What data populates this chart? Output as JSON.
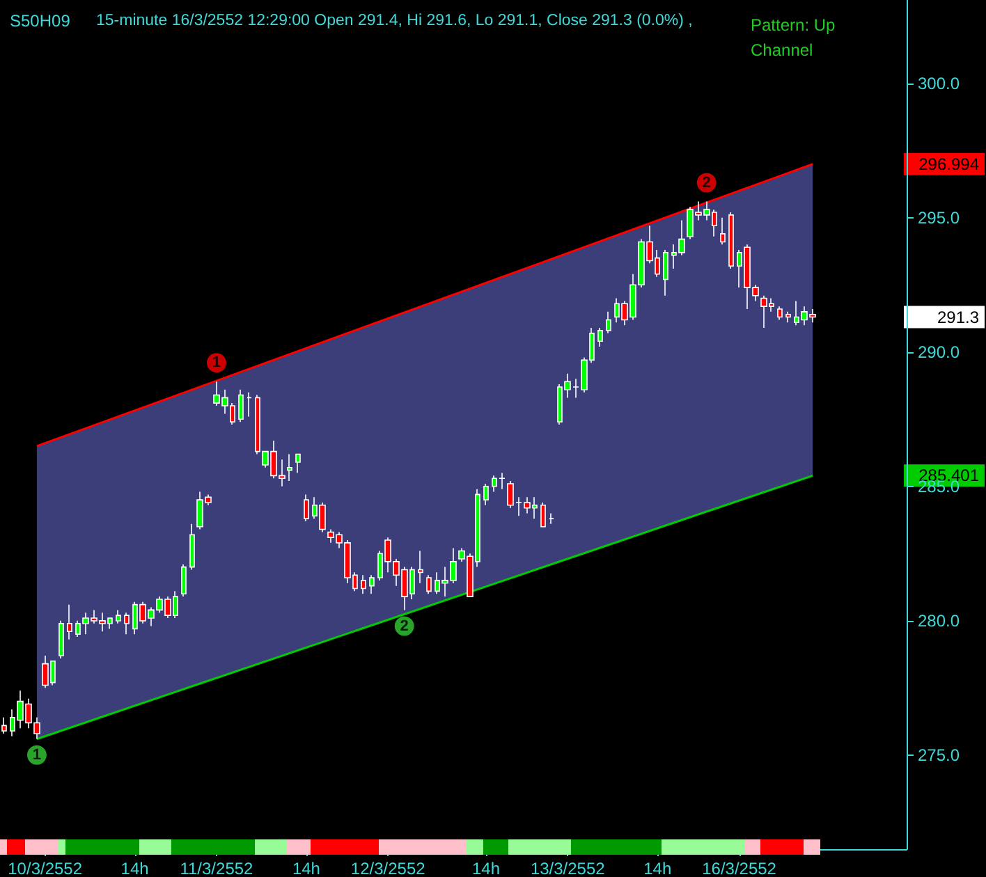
{
  "chart_data": {
    "type": "candlestick",
    "title": "S50H09",
    "subtitle": "15-minute 16/3/2552 12:29:00 Open 291.4, Hi 291.6, Lo 291.1, Close 291.3 (0.0%) ,",
    "annotations": [
      "Pattern: Up Channel",
      "291.3",
      "296.994",
      "285.401"
    ],
    "categories": [
      null,
      null,
      null,
      null,
      null,
      "10/3/2552",
      null,
      null,
      null,
      null,
      null,
      null,
      null,
      null,
      null,
      null,
      "14h",
      null,
      null,
      null,
      null,
      null,
      null,
      null,
      null,
      null,
      "11/3/2552",
      null,
      null,
      null,
      null,
      null,
      null,
      null,
      null,
      null,
      null,
      "14h",
      null,
      null,
      null,
      null,
      null,
      null,
      null,
      null,
      null,
      "12/3/2552",
      null,
      null,
      null,
      null,
      null,
      null,
      null,
      null,
      null,
      null,
      null,
      "14h",
      null,
      null,
      null,
      null,
      null,
      null,
      null,
      null,
      null,
      "13/3/2552",
      null,
      null,
      null,
      null,
      null,
      null,
      null,
      null,
      null,
      null,
      "14h",
      null,
      null,
      null,
      null,
      null,
      null,
      null,
      null,
      null,
      "16/3/2552",
      null,
      null,
      null,
      null,
      null,
      null,
      null,
      null,
      null,
      null,
      null,
      null,
      null,
      null,
      null,
      null,
      null,
      null,
      null,
      null
    ],
    "ylim": [
      271.5,
      303.1
    ],
    "yticks": [
      {
        "value": 275,
        "label": "275.0"
      },
      {
        "value": 280,
        "label": "280.0"
      },
      {
        "value": 285,
        "label": "285.0"
      },
      {
        "value": 290,
        "label": "290.0"
      },
      {
        "value": 295,
        "label": "295.0"
      },
      {
        "value": 300,
        "label": "300.0"
      }
    ],
    "series": [
      {
        "ohlc": [
          [
            276.1,
            276.4,
            275.8,
            275.9
          ],
          [
            275.9,
            276.7,
            275.7,
            276.4
          ],
          [
            276.3,
            277.4,
            276.0,
            277.0
          ],
          [
            276.9,
            277.1,
            276.0,
            276.2
          ],
          [
            276.2,
            276.4,
            275.6,
            275.8
          ],
          [
            278.4,
            278.7,
            277.5,
            277.6
          ],
          [
            277.7,
            278.5,
            277.6,
            278.5
          ],
          [
            278.7,
            280.0,
            278.6,
            279.9
          ],
          [
            279.9,
            280.6,
            279.3,
            279.6
          ],
          [
            279.5,
            280.0,
            279.4,
            279.9
          ],
          [
            279.9,
            280.3,
            279.5,
            280.1
          ],
          [
            280.1,
            280.4,
            279.9,
            280.0
          ],
          [
            280.0,
            280.3,
            279.6,
            279.9
          ],
          [
            279.9,
            280.1,
            279.7,
            280.1
          ],
          [
            280.0,
            280.4,
            279.9,
            280.2
          ],
          [
            280.2,
            280.3,
            279.5,
            279.9
          ],
          [
            279.7,
            280.7,
            279.5,
            280.6
          ],
          [
            280.6,
            280.7,
            279.9,
            280.0
          ],
          [
            280.1,
            280.5,
            279.8,
            280.4
          ],
          [
            280.4,
            280.9,
            280.3,
            280.8
          ],
          [
            280.8,
            280.9,
            280.1,
            280.2
          ],
          [
            280.2,
            281.1,
            280.1,
            280.9
          ],
          [
            281.0,
            282.1,
            280.9,
            282.0
          ],
          [
            282.0,
            283.6,
            281.9,
            283.2
          ],
          [
            283.5,
            284.8,
            283.4,
            284.5
          ],
          [
            284.6,
            284.7,
            284.3,
            284.4
          ],
          [
            288.1,
            288.9,
            288.0,
            288.4
          ],
          [
            288.0,
            288.6,
            287.7,
            288.3
          ],
          [
            288.0,
            288.1,
            287.3,
            287.4
          ],
          [
            287.5,
            288.6,
            287.4,
            288.4
          ],
          [
            288.3,
            288.5,
            287.6,
            288.3
          ],
          [
            288.3,
            288.4,
            286.2,
            286.3
          ],
          [
            285.8,
            286.3,
            285.7,
            286.3
          ],
          [
            286.3,
            286.7,
            285.3,
            285.4
          ],
          [
            285.4,
            286.0,
            285.0,
            285.3
          ],
          [
            285.6,
            286.2,
            285.2,
            285.7
          ],
          [
            285.9,
            286.2,
            285.5,
            286.2
          ],
          [
            284.5,
            284.7,
            283.7,
            283.8
          ],
          [
            283.9,
            284.6,
            283.8,
            284.3
          ],
          [
            284.3,
            284.4,
            283.3,
            283.4
          ],
          [
            283.3,
            283.4,
            282.9,
            283.1
          ],
          [
            283.2,
            283.3,
            282.7,
            282.9
          ],
          [
            282.9,
            283.0,
            281.4,
            281.6
          ],
          [
            281.7,
            281.8,
            281.1,
            281.2
          ],
          [
            281.5,
            281.7,
            281.0,
            281.2
          ],
          [
            281.3,
            281.7,
            281.0,
            281.6
          ],
          [
            281.6,
            282.6,
            281.5,
            282.5
          ],
          [
            283.0,
            283.1,
            281.8,
            282.2
          ],
          [
            282.2,
            282.3,
            281.3,
            281.7
          ],
          [
            281.9,
            282.0,
            280.4,
            280.9
          ],
          [
            281.0,
            282.0,
            280.8,
            281.9
          ],
          [
            281.9,
            282.6,
            281.4,
            281.8
          ],
          [
            281.6,
            281.7,
            281.0,
            281.1
          ],
          [
            281.1,
            281.8,
            281.0,
            281.5
          ],
          [
            281.4,
            282.0,
            280.9,
            281.5
          ],
          [
            281.5,
            282.7,
            281.4,
            282.2
          ],
          [
            282.3,
            282.7,
            282.2,
            282.6
          ],
          [
            282.4,
            282.5,
            280.9,
            280.9
          ],
          [
            282.2,
            284.9,
            282.0,
            284.7
          ],
          [
            284.5,
            285.1,
            284.3,
            285.0
          ],
          [
            285.0,
            285.4,
            284.8,
            285.3
          ],
          [
            285.3,
            285.5,
            284.9,
            285.3
          ],
          [
            285.1,
            285.2,
            284.2,
            284.3
          ],
          [
            284.4,
            284.6,
            283.9,
            284.4
          ],
          [
            284.4,
            284.6,
            284.0,
            284.2
          ],
          [
            284.2,
            284.6,
            283.8,
            284.3
          ],
          [
            284.3,
            284.4,
            283.5,
            283.5
          ],
          [
            283.8,
            284.0,
            283.6,
            283.8
          ],
          [
            287.4,
            288.8,
            287.3,
            288.7
          ],
          [
            288.6,
            289.2,
            288.3,
            288.9
          ],
          [
            288.7,
            289.0,
            288.3,
            288.7
          ],
          [
            288.6,
            289.8,
            288.5,
            289.7
          ],
          [
            289.7,
            290.9,
            289.6,
            290.7
          ],
          [
            290.4,
            290.9,
            290.2,
            290.8
          ],
          [
            290.8,
            291.5,
            290.7,
            291.2
          ],
          [
            291.3,
            292.0,
            291.1,
            291.8
          ],
          [
            291.8,
            291.9,
            291.0,
            291.2
          ],
          [
            291.3,
            292.9,
            291.2,
            292.5
          ],
          [
            292.5,
            294.2,
            292.4,
            294.1
          ],
          [
            294.1,
            294.7,
            293.3,
            293.4
          ],
          [
            293.5,
            293.8,
            292.8,
            292.9
          ],
          [
            292.7,
            293.8,
            292.1,
            293.7
          ],
          [
            293.6,
            294.0,
            293.1,
            293.7
          ],
          [
            293.7,
            294.9,
            293.6,
            294.2
          ],
          [
            294.3,
            295.4,
            294.2,
            295.3
          ],
          [
            295.2,
            295.6,
            294.9,
            295.1
          ],
          [
            295.1,
            295.6,
            294.9,
            295.3
          ],
          [
            295.2,
            295.3,
            294.3,
            294.7
          ],
          [
            294.4,
            295.0,
            294.0,
            294.1
          ],
          [
            295.1,
            295.2,
            293.1,
            293.2
          ],
          [
            293.2,
            293.8,
            292.4,
            293.7
          ],
          [
            293.9,
            294.0,
            291.6,
            292.4
          ],
          [
            292.4,
            292.5,
            291.9,
            292.1
          ],
          [
            292.0,
            292.1,
            290.9,
            291.7
          ],
          [
            291.8,
            292.0,
            291.5,
            291.7
          ],
          [
            291.6,
            291.7,
            291.2,
            291.3
          ],
          [
            291.4,
            291.5,
            291.1,
            291.3
          ],
          [
            291.1,
            291.9,
            291.0,
            291.3
          ],
          [
            291.2,
            291.7,
            291.0,
            291.5
          ],
          [
            291.4,
            291.6,
            291.1,
            291.3
          ],
          null,
          null,
          null,
          null,
          null,
          null,
          null,
          null,
          null,
          null,
          null
        ],
        "colors": [
          "#ff0000",
          "#00ff00",
          "#00ff00",
          "#ff0000",
          "#ff0000",
          "#ff0000",
          "#00ff00",
          "#00ff00",
          "#ff0000",
          "#00ff00",
          "#00ff00",
          "#ff0000",
          "#ff0000",
          "#00ff00",
          "#00ff00",
          "#ff0000",
          "#00ff00",
          "#ff0000",
          "#00ff00",
          "#00ff00",
          "#ff0000",
          "#00ff00",
          "#00ff00",
          "#00ff00",
          "#00ff00",
          "#ff0000",
          "#00ff00",
          "#00ff00",
          "#ff0000",
          "#00ff00",
          "#ffffff",
          "#ff0000",
          "#00ff00",
          "#ff0000",
          "#ff0000",
          "#00ff00",
          "#00ff00",
          "#ff0000",
          "#00ff00",
          "#ff0000",
          "#ff0000",
          "#ff0000",
          "#ff0000",
          "#ff0000",
          "#ff0000",
          "#00ff00",
          "#00ff00",
          "#ff0000",
          "#ff0000",
          "#ff0000",
          "#00ff00",
          "#ff0000",
          "#ff0000",
          "#00ff00",
          "#00ff00",
          "#00ff00",
          "#00ff00",
          "#ff0000",
          "#00ff00",
          "#00ff00",
          "#00ff00",
          "#ffffff",
          "#ff0000",
          "#ffffff",
          "#ff0000",
          "#00ff00",
          "#ff0000",
          "#ffffff",
          "#00ff00",
          "#00ff00",
          "#ffffff",
          "#00ff00",
          "#00ff00",
          "#00ff00",
          "#00ff00",
          "#00ff00",
          "#ff0000",
          "#00ff00",
          "#00ff00",
          "#ff0000",
          "#ff0000",
          "#00ff00",
          "#00ff00",
          "#00ff00",
          "#00ff00",
          "#ff0000",
          "#00ff00",
          "#ff0000",
          "#ff0000",
          "#ff0000",
          "#00ff00",
          "#ff0000",
          "#ff0000",
          "#ff0000",
          "#ff0000",
          "#ff0000",
          "#ff0000",
          "#00ff00",
          "#00ff00",
          "#ff0000",
          null,
          null,
          null,
          null,
          null,
          null,
          null,
          null,
          null,
          null,
          null
        ],
        "value_labels": [
          null,
          null,
          null,
          null,
          null,
          null,
          null,
          null,
          null,
          null,
          null,
          null,
          null,
          null,
          null,
          null,
          null,
          null,
          null,
          null,
          null,
          null,
          null,
          null,
          null,
          null,
          null,
          null,
          null,
          null,
          null,
          null,
          null,
          null,
          null,
          null,
          null,
          null,
          null,
          null,
          null,
          null,
          null,
          null,
          null,
          null,
          null,
          null,
          null,
          null,
          null,
          null,
          null,
          null,
          null,
          null,
          null,
          null,
          null,
          null,
          null,
          null,
          null,
          null,
          null,
          null,
          null,
          null,
          null,
          null,
          null,
          null,
          null,
          null,
          null,
          null,
          null,
          null,
          null,
          null,
          null,
          null,
          null,
          null,
          null,
          null,
          null,
          null,
          null,
          null,
          null,
          null,
          null,
          null,
          null,
          null,
          null,
          null,
          null,
          null,
          null,
          null,
          null,
          null,
          null,
          null,
          null,
          null,
          null,
          null,
          null
        ]
      },
      {
        "type": "line",
        "color": "#ff0000",
        "values": [
          null,
          null,
          null,
          null,
          286.5,
          null,
          null,
          null,
          null,
          null,
          null,
          null,
          null,
          null,
          null,
          null,
          null,
          null,
          null,
          null,
          null,
          null,
          null,
          null,
          null,
          null,
          null,
          null,
          null,
          null,
          null,
          null,
          null,
          null,
          null,
          null,
          null,
          null,
          null,
          null,
          null,
          null,
          null,
          null,
          null,
          null,
          null,
          null,
          null,
          null,
          null,
          null,
          null,
          null,
          null,
          null,
          null,
          null,
          null,
          null,
          null,
          null,
          null,
          null,
          null,
          null,
          null,
          null,
          null,
          null,
          null,
          null,
          null,
          null,
          null,
          null,
          null,
          null,
          null,
          null,
          null,
          null,
          null,
          null,
          null,
          null,
          null,
          null,
          null,
          null,
          null,
          null,
          null,
          null,
          null,
          null,
          null,
          null,
          null,
          296.994,
          null,
          null,
          null,
          null,
          null,
          null,
          null,
          null,
          null,
          null,
          null
        ],
        "value_labels": [
          null,
          null,
          null,
          null,
          null,
          null,
          null,
          null,
          null,
          null,
          null,
          null,
          null,
          null,
          null,
          null,
          null,
          null,
          null,
          null,
          null,
          null,
          null,
          null,
          null,
          null,
          null,
          null,
          null,
          null,
          null,
          null,
          null,
          null,
          null,
          null,
          null,
          null,
          null,
          null,
          null,
          null,
          null,
          null,
          null,
          null,
          null,
          null,
          null,
          null,
          null,
          null,
          null,
          null,
          null,
          null,
          null,
          null,
          null,
          null,
          null,
          null,
          null,
          null,
          null,
          null,
          null,
          null,
          null,
          null,
          null,
          null,
          null,
          null,
          null,
          null,
          null,
          null,
          null,
          null,
          null,
          null,
          null,
          null,
          null,
          null,
          null,
          null,
          null,
          null,
          null,
          null,
          null,
          null,
          null,
          null,
          null,
          null,
          null,
          null,
          null,
          null,
          null,
          null,
          null,
          null,
          null,
          null,
          null,
          null,
          null
        ]
      },
      {
        "type": "line",
        "color": "#00cc00",
        "values": [
          null,
          null,
          null,
          null,
          275.6,
          null,
          null,
          null,
          null,
          null,
          null,
          null,
          null,
          null,
          null,
          null,
          null,
          null,
          null,
          null,
          null,
          null,
          null,
          null,
          null,
          null,
          null,
          null,
          null,
          null,
          null,
          null,
          null,
          null,
          null,
          null,
          null,
          null,
          null,
          null,
          null,
          null,
          null,
          null,
          null,
          null,
          null,
          null,
          null,
          null,
          null,
          null,
          null,
          null,
          null,
          null,
          null,
          null,
          null,
          null,
          null,
          null,
          null,
          null,
          null,
          null,
          null,
          null,
          null,
          null,
          null,
          null,
          null,
          null,
          null,
          null,
          null,
          null,
          null,
          null,
          null,
          null,
          null,
          null,
          null,
          null,
          null,
          null,
          null,
          null,
          null,
          null,
          null,
          null,
          null,
          null,
          null,
          null,
          null,
          285.401,
          null,
          null,
          null,
          null,
          null,
          null,
          null,
          null,
          null,
          null,
          null
        ],
        "value_labels": [
          null,
          null,
          null,
          null,
          null,
          null,
          null,
          null,
          null,
          null,
          null,
          null,
          null,
          null,
          null,
          null,
          null,
          null,
          null,
          null,
          null,
          null,
          null,
          null,
          null,
          null,
          null,
          null,
          null,
          null,
          null,
          null,
          null,
          null,
          null,
          null,
          null,
          null,
          null,
          null,
          null,
          null,
          null,
          null,
          null,
          null,
          null,
          null,
          null,
          null,
          null,
          null,
          null,
          null,
          null,
          null,
          null,
          null,
          null,
          null,
          null,
          null,
          null,
          null,
          null,
          null,
          null,
          null,
          null,
          null,
          null,
          null,
          null,
          null,
          null,
          null,
          null,
          null,
          null,
          null,
          null,
          null,
          null,
          null,
          null,
          null,
          null,
          null,
          null,
          null,
          null,
          null,
          null,
          null,
          null,
          null,
          null,
          null,
          null,
          null,
          null,
          null,
          null,
          null,
          null,
          null,
          null,
          null,
          null,
          null,
          null
        ],
        "lower": [
          null,
          null,
          null,
          null,
          275.6,
          null,
          null,
          null,
          null,
          null,
          null,
          null,
          null,
          null,
          null,
          null,
          null,
          null,
          null,
          null,
          null,
          null,
          null,
          null,
          null,
          null,
          null,
          null,
          null,
          null,
          null,
          null,
          null,
          null,
          null,
          null,
          null,
          null,
          null,
          null,
          null,
          null,
          null,
          null,
          null,
          null,
          null,
          null,
          null,
          null,
          null,
          null,
          null,
          null,
          null,
          null,
          null,
          null,
          null,
          null,
          null,
          null,
          null,
          null,
          null,
          null,
          null,
          null,
          null,
          null,
          null,
          null,
          null,
          null,
          null,
          null,
          null,
          null,
          null,
          null,
          null,
          null,
          null,
          null,
          null,
          null,
          null,
          null,
          null,
          null,
          null,
          null,
          null,
          null,
          null,
          null,
          null,
          null,
          null,
          285.401,
          null,
          null,
          null,
          null,
          null,
          null,
          null,
          null,
          null,
          null,
          null
        ],
        "upper": [
          null,
          null,
          null,
          null,
          286.5,
          null,
          null,
          null,
          null,
          null,
          null,
          null,
          null,
          null,
          null,
          null,
          null,
          null,
          null,
          null,
          null,
          null,
          null,
          null,
          null,
          null,
          null,
          null,
          null,
          null,
          null,
          null,
          null,
          null,
          null,
          null,
          null,
          null,
          null,
          null,
          null,
          null,
          null,
          null,
          null,
          null,
          null,
          null,
          null,
          null,
          null,
          null,
          null,
          null,
          null,
          null,
          null,
          null,
          null,
          null,
          null,
          null,
          null,
          null,
          null,
          null,
          null,
          null,
          null,
          null,
          null,
          null,
          null,
          null,
          null,
          null,
          null,
          null,
          null,
          null,
          null,
          null,
          null,
          null,
          null,
          null,
          null,
          null,
          null,
          null,
          null,
          null,
          null,
          null,
          null,
          null,
          null,
          null,
          null,
          296.994,
          null,
          null,
          null,
          null,
          null,
          null,
          null,
          null,
          null,
          null,
          null
        ]
      },
      {
        "type": "scatter",
        "name": "1",
        "color": "#ff0000",
        "marker": "circle",
        "values": [
          null,
          null,
          null,
          null,
          null,
          null,
          null,
          null,
          null,
          null,
          null,
          null,
          null,
          null,
          null,
          null,
          null,
          null,
          null,
          null,
          null,
          null,
          null,
          null,
          null,
          null,
          289.6,
          null,
          null,
          null,
          null,
          null,
          null,
          null,
          null,
          null,
          null,
          null,
          null,
          null,
          null,
          null,
          null,
          null,
          null,
          null,
          null,
          null,
          null,
          null,
          null,
          null,
          null,
          null,
          null,
          null,
          null,
          null,
          null,
          null,
          null,
          null,
          null,
          null,
          null,
          null,
          null,
          null,
          null,
          null,
          null,
          null,
          null,
          null,
          null,
          null,
          null,
          null,
          null,
          null,
          null,
          null,
          null,
          null,
          null,
          null,
          null,
          null,
          null,
          null,
          null,
          null,
          null,
          null,
          null,
          null,
          null,
          null,
          null,
          null,
          null,
          null,
          null,
          null,
          null,
          null,
          null,
          null,
          null,
          null,
          null
        ]
      },
      {
        "type": "scatter",
        "name": "2",
        "color": "#ff0000",
        "marker": "circle",
        "values": [
          null,
          null,
          null,
          null,
          null,
          null,
          null,
          null,
          null,
          null,
          null,
          null,
          null,
          null,
          null,
          null,
          null,
          null,
          null,
          null,
          null,
          null,
          null,
          null,
          null,
          null,
          null,
          null,
          null,
          null,
          null,
          null,
          null,
          null,
          null,
          null,
          null,
          null,
          null,
          null,
          null,
          null,
          null,
          null,
          null,
          null,
          null,
          null,
          null,
          null,
          null,
          null,
          null,
          null,
          null,
          null,
          null,
          null,
          null,
          null,
          null,
          null,
          null,
          null,
          null,
          null,
          null,
          null,
          null,
          null,
          null,
          null,
          null,
          null,
          null,
          null,
          null,
          null,
          null,
          null,
          null,
          null,
          null,
          null,
          null,
          null,
          296.3,
          null,
          null,
          null,
          null,
          null,
          null,
          null,
          null,
          null,
          null,
          null,
          null,
          null,
          null,
          null,
          null,
          null,
          null,
          null,
          null,
          null,
          null,
          null,
          null
        ]
      },
      {
        "type": "scatter",
        "name": "1",
        "color": "#33cc33",
        "marker": "circle",
        "values": [
          null,
          null,
          null,
          null,
          275.0,
          null,
          null,
          null,
          null,
          null,
          null,
          null,
          null,
          null,
          null,
          null,
          null,
          null,
          null,
          null,
          null,
          null,
          null,
          null,
          null,
          null,
          null,
          null,
          null,
          null,
          null,
          null,
          null,
          null,
          null,
          null,
          null,
          null,
          null,
          null,
          null,
          null,
          null,
          null,
          null,
          null,
          null,
          null,
          null,
          null,
          null,
          null,
          null,
          null,
          null,
          null,
          null,
          null,
          null,
          null,
          null,
          null,
          null,
          null,
          null,
          null,
          null,
          null,
          null,
          null,
          null,
          null,
          null,
          null,
          null,
          null,
          null,
          null,
          null,
          null,
          null,
          null,
          null,
          null,
          null,
          null,
          null,
          null,
          null,
          null,
          null,
          null,
          null,
          null,
          null,
          null,
          null,
          null,
          null,
          null,
          null,
          null,
          null,
          null,
          null,
          null,
          null,
          null,
          null,
          null,
          null
        ]
      },
      {
        "type": "scatter",
        "name": "2",
        "color": "#33cc33",
        "marker": "circle",
        "values": [
          null,
          null,
          null,
          null,
          null,
          null,
          null,
          null,
          null,
          null,
          null,
          null,
          null,
          null,
          null,
          null,
          null,
          null,
          null,
          null,
          null,
          null,
          null,
          null,
          null,
          null,
          null,
          null,
          null,
          null,
          null,
          null,
          null,
          null,
          null,
          null,
          null,
          null,
          null,
          null,
          null,
          null,
          null,
          null,
          null,
          null,
          null,
          null,
          null,
          279.8,
          null,
          null,
          null,
          null,
          null,
          null,
          null,
          null,
          null,
          null,
          null,
          null,
          null,
          null,
          null,
          null,
          null,
          null,
          null,
          null,
          null,
          null,
          null,
          null,
          null,
          null,
          null,
          null,
          null,
          null,
          null,
          null,
          null,
          null,
          null,
          null,
          null,
          null,
          null,
          null,
          null,
          null,
          null,
          null,
          null,
          null,
          null,
          null,
          null,
          null,
          null,
          null,
          null,
          null,
          null,
          null,
          null,
          null,
          null,
          null,
          null
        ]
      }
    ]
  }
}
